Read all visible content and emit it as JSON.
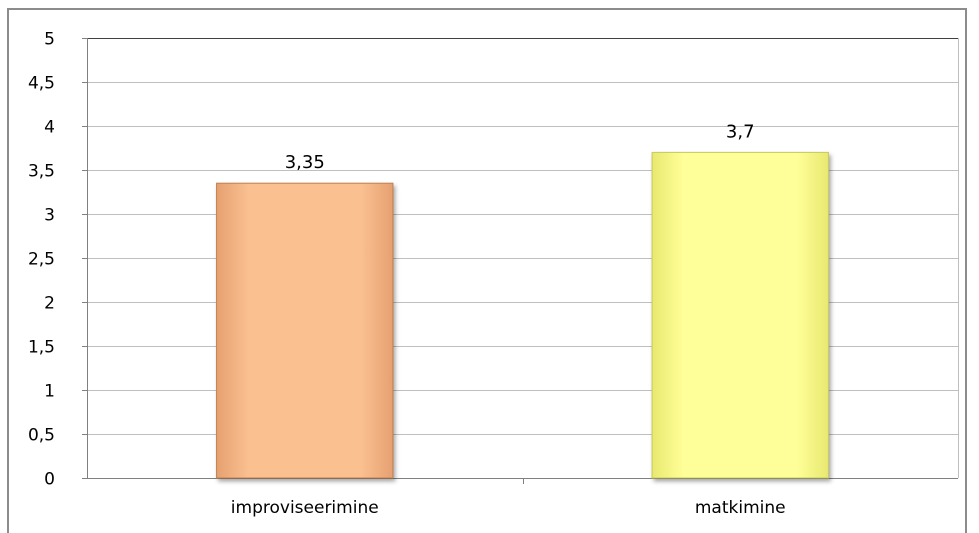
{
  "chart_data": {
    "type": "bar",
    "title": "",
    "xlabel": "",
    "ylabel": "",
    "categories": [
      "improviseerimine",
      "matkimine"
    ],
    "values": [
      3.35,
      3.7
    ],
    "data_labels": [
      "3,35",
      "3,7"
    ],
    "ylim": [
      0,
      5
    ],
    "yticks": [
      0,
      0.5,
      1,
      1.5,
      2,
      2.5,
      3,
      3.5,
      4,
      4.5,
      5
    ],
    "ytick_labels": [
      "0",
      "0,5",
      "1",
      "1,5",
      "2",
      "2,5",
      "3",
      "3,5",
      "4",
      "4,5",
      "5"
    ],
    "grid": true,
    "legend": "none",
    "colors": {
      "bars": [
        "#fac090",
        "#ffff99"
      ],
      "bar_stroke": [
        "#c0804f",
        "#c8c860"
      ],
      "gridline": "#bfbfbf",
      "axis": "#808080"
    }
  }
}
